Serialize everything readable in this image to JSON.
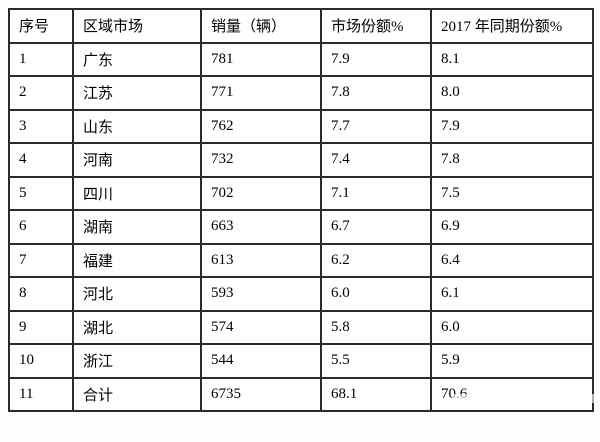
{
  "chart_data": {
    "type": "table",
    "title": "",
    "columns": [
      "序号",
      "区域市场",
      "销量（辆）",
      "市场份额%",
      "2017 年同期份额%"
    ],
    "rows": [
      [
        "1",
        "广东",
        "781",
        "7.9",
        "8.1"
      ],
      [
        "2",
        "江苏",
        "771",
        "7.8",
        "8.0"
      ],
      [
        "3",
        "山东",
        "762",
        "7.7",
        "7.9"
      ],
      [
        "4",
        "河南",
        "732",
        "7.4",
        "7.8"
      ],
      [
        "5",
        "四川",
        "702",
        "7.1",
        "7.5"
      ],
      [
        "6",
        "湖南",
        "663",
        "6.7",
        "6.9"
      ],
      [
        "7",
        "福建",
        "613",
        "6.2",
        "6.4"
      ],
      [
        "8",
        "河北",
        "593",
        "6.0",
        "6.1"
      ],
      [
        "9",
        "湖北",
        "574",
        "5.8",
        "6.0"
      ],
      [
        "10",
        "浙江",
        "544",
        "5.5",
        "5.9"
      ],
      [
        "11",
        "合计",
        "6735",
        "68.1",
        "70.6"
      ]
    ]
  },
  "colors": {
    "border": "#2b2b2b",
    "text": "#000000",
    "background": "#ffffff"
  }
}
